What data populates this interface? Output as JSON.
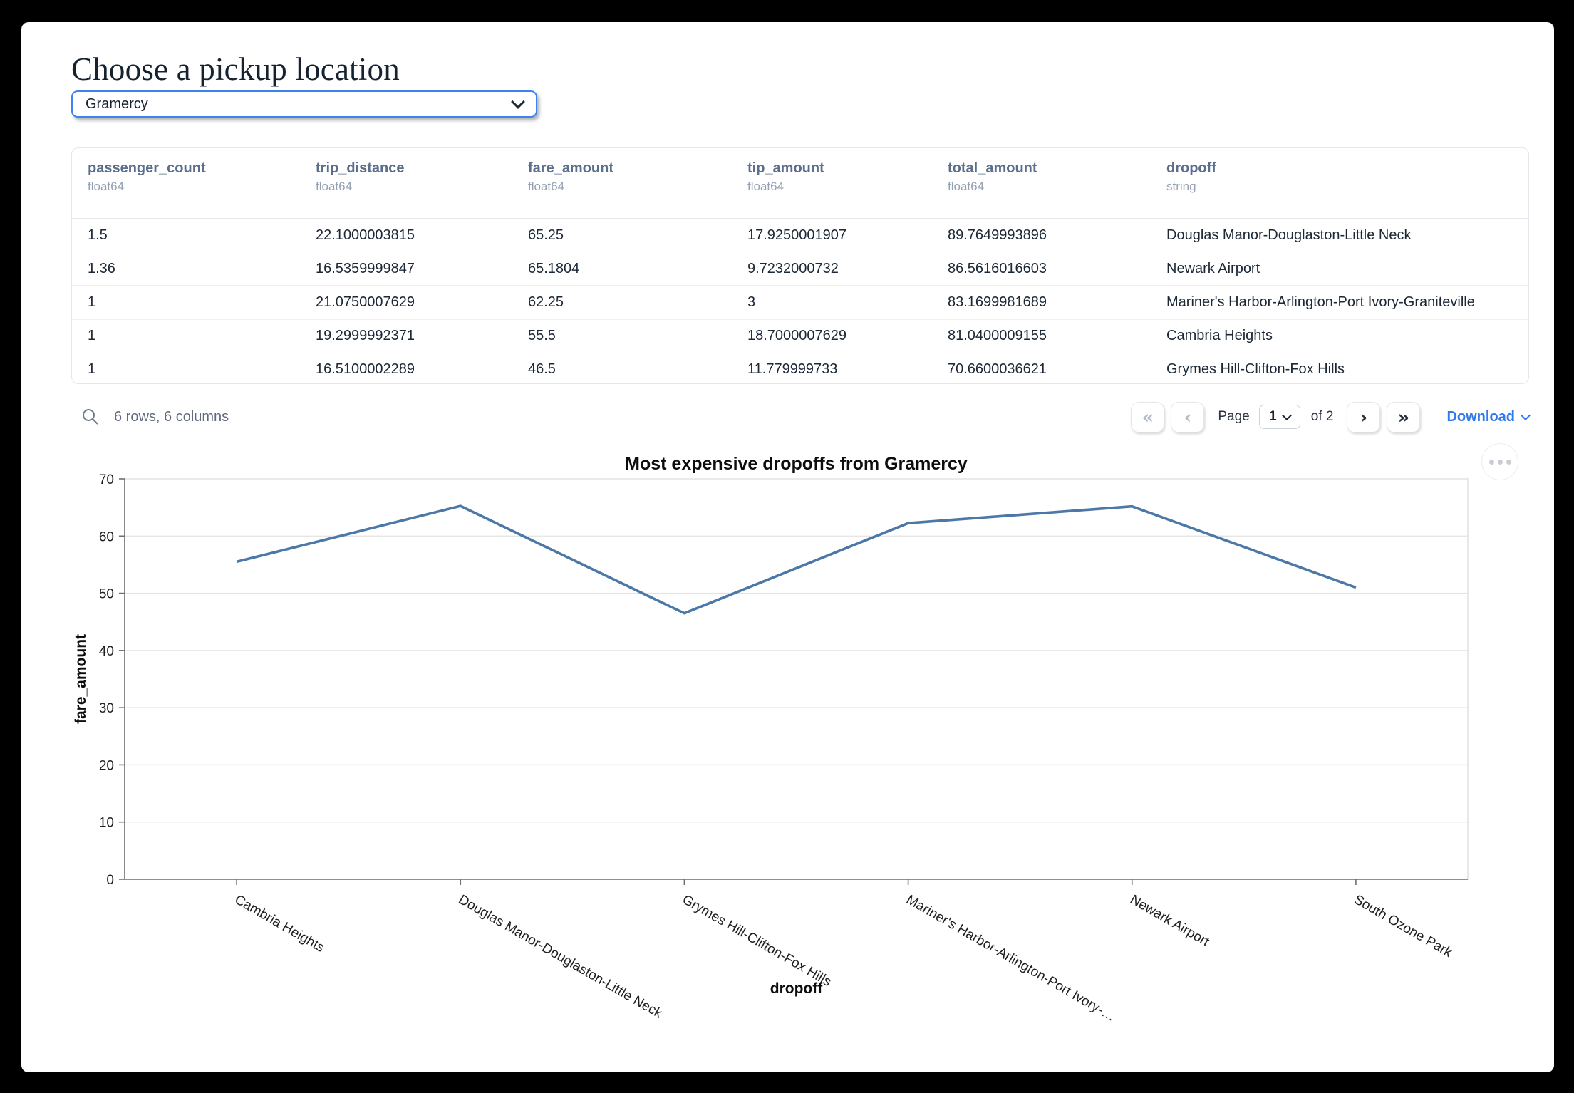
{
  "header": {
    "title": "Choose a pickup location"
  },
  "select": {
    "value": "Gramercy"
  },
  "table": {
    "columns": [
      {
        "name": "passenger_count",
        "dtype": "float64"
      },
      {
        "name": "trip_distance",
        "dtype": "float64"
      },
      {
        "name": "fare_amount",
        "dtype": "float64"
      },
      {
        "name": "tip_amount",
        "dtype": "float64"
      },
      {
        "name": "total_amount",
        "dtype": "float64"
      },
      {
        "name": "dropoff",
        "dtype": "string"
      }
    ],
    "rows": [
      [
        "1.5",
        "22.1000003815",
        "65.25",
        "17.9250001907",
        "89.7649993896",
        "Douglas Manor-Douglaston-Little Neck"
      ],
      [
        "1.36",
        "16.5359999847",
        "65.1804",
        "9.7232000732",
        "86.5616016603",
        "Newark Airport"
      ],
      [
        "1",
        "21.0750007629",
        "62.25",
        "3",
        "83.1699981689",
        "Mariner's Harbor-Arlington-Port Ivory-Graniteville"
      ],
      [
        "1",
        "19.2999992371",
        "55.5",
        "18.7000007629",
        "81.0400009155",
        "Cambria Heights"
      ],
      [
        "1",
        "16.5100002289",
        "46.5",
        "11.779999733",
        "70.6600036621",
        "Grymes Hill-Clifton-Fox Hills"
      ]
    ]
  },
  "footer": {
    "summary": "6 rows, 6 columns",
    "page_label": "Page",
    "page_value": "1",
    "of_label": "of 2",
    "download_label": "Download",
    "icons": {
      "first_page": "«",
      "prev_page": "‹",
      "next_page": "›",
      "last_page": "»"
    }
  },
  "chart_data": {
    "type": "line",
    "title": "Most expensive dropoffs from Gramercy",
    "xlabel": "dropoff",
    "ylabel": "fare_amount",
    "categories": [
      "Cambria Heights",
      "Douglas Manor-Douglaston-Little Neck",
      "Grymes Hill-Clifton-Fox Hills",
      "Mariner's Harbor-Arlington-Port Ivory-…",
      "Newark Airport",
      "South Ozone Park"
    ],
    "values": [
      55.5,
      65.25,
      46.5,
      62.25,
      65.1804,
      51
    ],
    "ylim": [
      0,
      70
    ],
    "yticks": [
      0,
      10,
      20,
      30,
      40,
      50,
      60,
      70
    ],
    "grid": true,
    "legend": "none",
    "line_color": "#4c78a8",
    "label_angle": 30
  }
}
